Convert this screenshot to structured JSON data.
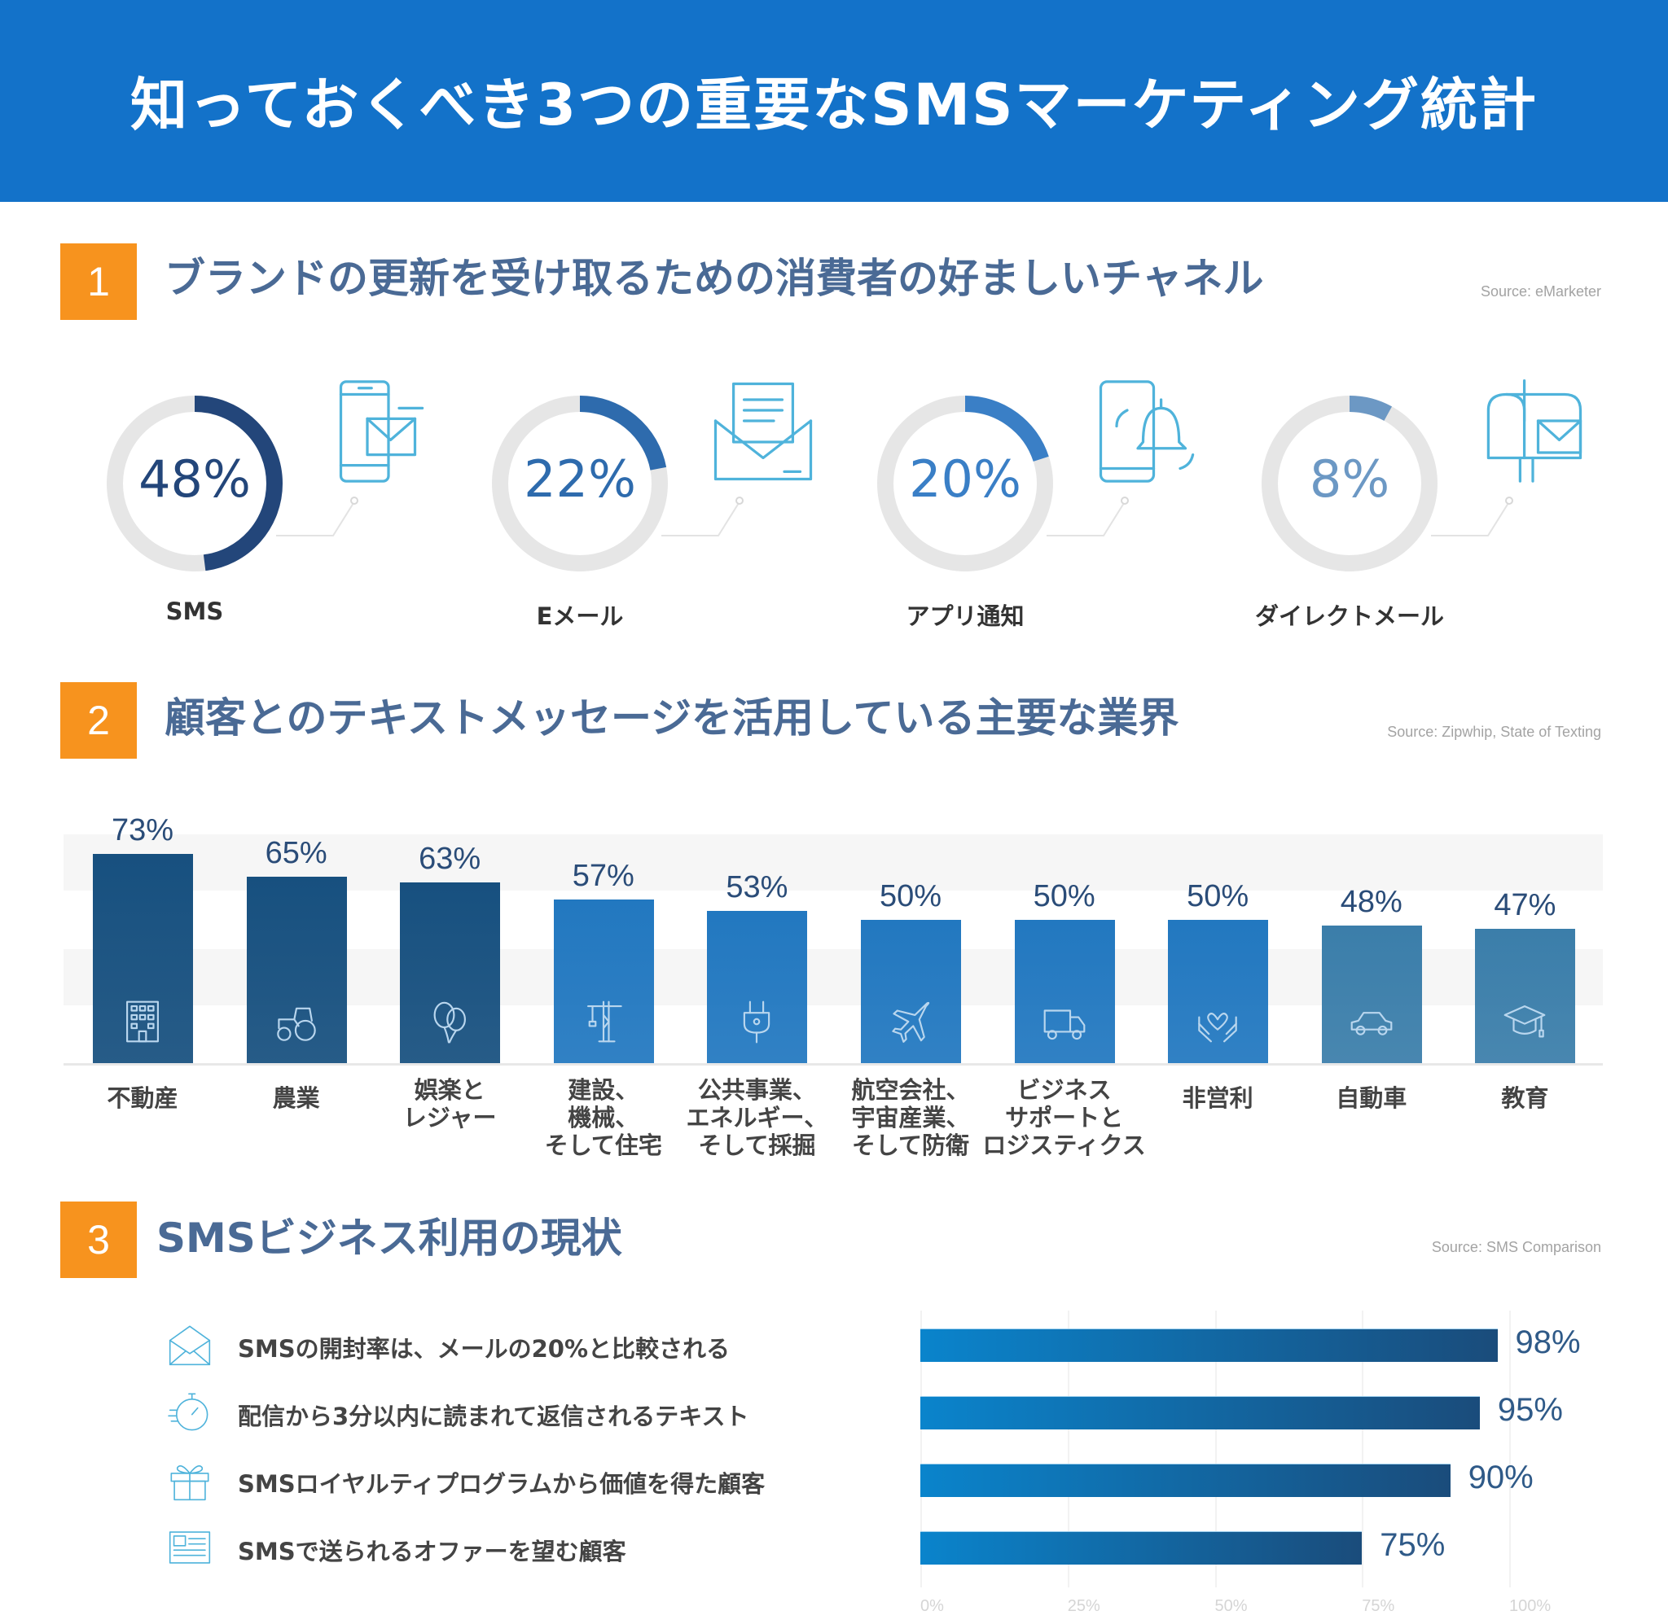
{
  "header": {
    "title": "知っておくべき3つの重要なSMSマーケティング統計"
  },
  "colors": {
    "header": "#1372c9",
    "accent": "#f7931e",
    "section_title": "#4a6a95",
    "icon": "#4fb3db"
  },
  "sections": [
    {
      "number": "1",
      "title": "ブランドの更新を受け取るための消費者の好ましいチャネル",
      "source": "Source: eMarketer"
    },
    {
      "number": "2",
      "title": "顧客とのテキストメッセージを活用している主要な業界",
      "source": "Source: Zipwhip, State of Texting"
    },
    {
      "number": "3",
      "title": "SMSビジネス利用の現状",
      "source": "Source: SMS Comparison"
    }
  ],
  "chart_data": [
    {
      "type": "pie",
      "variant": "donut",
      "categories": [
        "SMS",
        "Eメール",
        "アプリ通知",
        "ダイレクトメール"
      ],
      "values": [
        48,
        22,
        20,
        8
      ],
      "value_labels": [
        "48%",
        "22%",
        "20%",
        "8%"
      ],
      "colors": [
        "#23467a",
        "#2e6bad",
        "#3a7fc6",
        "#6c98c4"
      ],
      "icons": [
        "phone-message-icon",
        "envelope-letter-icon",
        "phone-bell-icon",
        "mailbox-icon"
      ]
    },
    {
      "type": "bar",
      "categories": [
        [
          "不動産"
        ],
        [
          "農業"
        ],
        [
          "娯楽と",
          "レジャー"
        ],
        [
          "建設、",
          "機械、",
          "そして住宅"
        ],
        [
          "公共事業、",
          "エネルギー、",
          "そして採掘"
        ],
        [
          "航空会社、",
          "宇宙産業、",
          "そして防衛"
        ],
        [
          "ビジネス",
          "サポートと",
          "ロジスティクス"
        ],
        [
          "非営利"
        ],
        [
          "自動車"
        ],
        [
          "教育"
        ]
      ],
      "values": [
        73,
        65,
        63,
        57,
        53,
        50,
        50,
        50,
        48,
        47
      ],
      "value_labels": [
        "73%",
        "65%",
        "63%",
        "57%",
        "53%",
        "50%",
        "50%",
        "50%",
        "48%",
        "47%"
      ],
      "colors": [
        "#17507f",
        "#17507f",
        "#17507f",
        "#2278c0",
        "#2278c0",
        "#2278c0",
        "#2278c0",
        "#2278c0",
        "#3b7eaa",
        "#3b7eaa"
      ],
      "icons": [
        "building-icon",
        "tractor-icon",
        "balloons-icon",
        "crane-icon",
        "plug-icon",
        "airplane-icon",
        "truck-icon",
        "heart-hands-icon",
        "car-icon",
        "graduation-cap-icon"
      ],
      "ylim": [
        0,
        80
      ]
    },
    {
      "type": "bar",
      "orientation": "horizontal",
      "categories": [
        "SMSの開封率は、メールの20%と比較される",
        "配信から3分以内に読まれて返信されるテキスト",
        "SMSロイヤルティプログラムから価値を得た顧客",
        "SMSで送られるオファーを望む顧客"
      ],
      "values": [
        98,
        95,
        90,
        75
      ],
      "value_labels": [
        "98%",
        "95%",
        "90%",
        "75%"
      ],
      "icons": [
        "envelope-open-icon",
        "stopwatch-icon",
        "gift-icon",
        "coupon-icon"
      ],
      "xticks": [
        "0%",
        "25%",
        "50%",
        "75%",
        "100%"
      ],
      "xlim": [
        0,
        100
      ],
      "grid": true
    }
  ]
}
